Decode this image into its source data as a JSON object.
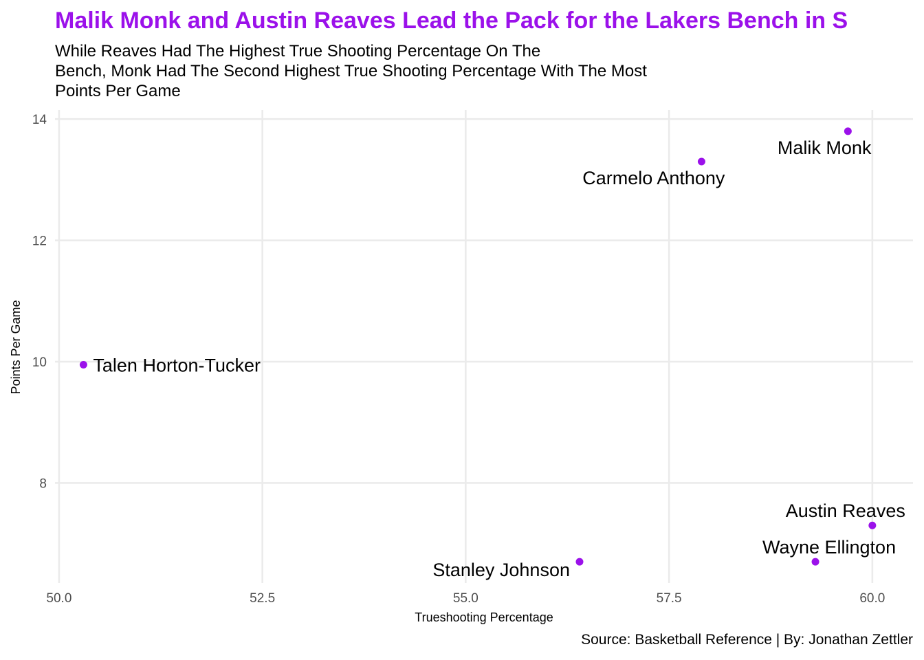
{
  "title": "Malik Monk and Austin Reaves Lead the Pack for the Lakers Bench in S",
  "subtitle_lines": [
    "While Reaves Had The Highest True Shooting Percentage On The",
    "Bench, Monk Had The Second Highest True Shooting Percentage With The Most",
    "Points Per Game"
  ],
  "source": "Source: Basketball Reference | By: Jonathan Zettler",
  "colors": {
    "accent": "#9b11ea",
    "point": "#9b11ea",
    "grid": "#ebebeb"
  },
  "chart_data": {
    "type": "scatter",
    "title": "Malik Monk and Austin Reaves Lead the Pack for the Lakers Bench in S",
    "xlabel": "Trueshooting Percentage",
    "ylabel": "Points Per Game",
    "xlim": [
      49.95,
      60.5
    ],
    "ylim": [
      6.35,
      14.15
    ],
    "xticks": [
      50.0,
      52.5,
      55.0,
      57.5,
      60.0
    ],
    "xtick_labels": [
      "50.0",
      "52.5",
      "55.0",
      "57.5",
      "60.0"
    ],
    "yticks": [
      8,
      10,
      12,
      14
    ],
    "ytick_labels": [
      "8",
      "10",
      "12",
      "14"
    ],
    "grid": true,
    "legend": "none",
    "points": [
      {
        "label": "Malik Monk",
        "x": 59.7,
        "y": 13.8,
        "label_pos": "below-left"
      },
      {
        "label": "Carmelo Anthony",
        "x": 57.9,
        "y": 13.3,
        "label_pos": "below-left"
      },
      {
        "label": "Talen Horton-Tucker",
        "x": 50.3,
        "y": 9.95,
        "label_pos": "right"
      },
      {
        "label": "Austin Reaves",
        "x": 60.0,
        "y": 7.3,
        "label_pos": "above-left"
      },
      {
        "label": "Wayne Ellington",
        "x": 59.3,
        "y": 6.7,
        "label_pos": "above"
      },
      {
        "label": "Stanley Johnson",
        "x": 56.4,
        "y": 6.7,
        "label_pos": "left-below"
      }
    ]
  }
}
